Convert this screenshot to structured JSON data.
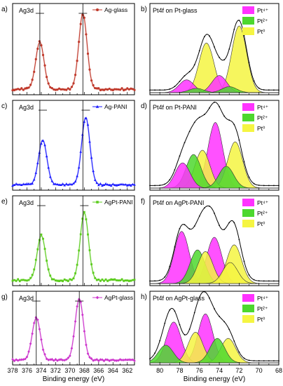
{
  "figure": {
    "left_x_ticks": [
      "378",
      "376",
      "374",
      "372",
      "370",
      "368",
      "366",
      "364",
      "362"
    ],
    "right_x_ticks": [
      "80",
      "78",
      "76",
      "74",
      "72",
      "70",
      "68"
    ],
    "left_x_label": "Binding energy (eV)",
    "right_x_label": "Binding energy (eV)"
  },
  "chart_data": [
    {
      "id": "a",
      "type": "line",
      "panel_label": "a)",
      "inset": "Ag3d",
      "legend": "Ag-glass",
      "color": "#c0392b",
      "marker": "circle",
      "x_range": [
        378,
        361
      ],
      "peaks": [
        {
          "x": 374.2,
          "height": 0.55
        },
        {
          "x": 368.2,
          "height": 0.88
        }
      ],
      "ref_lines": [
        374.2,
        368.2
      ]
    },
    {
      "id": "b",
      "type": "area",
      "panel_label": "b)",
      "inset": "Pt4f on Pt-glass",
      "legend_entries": [
        "Pt⁴⁺",
        "Pt²⁺",
        "Pt⁰"
      ],
      "legend_colors": [
        "#ff33ff",
        "#4dd82e",
        "#f5f542"
      ],
      "x_range": [
        81,
        68
      ],
      "components": [
        {
          "state": "Pt0",
          "x": 72.0,
          "height": 0.78
        },
        {
          "state": "Pt0",
          "x": 75.3,
          "height": 0.58
        },
        {
          "state": "Pt4+",
          "x": 74.0,
          "height": 0.2
        },
        {
          "state": "Pt4+",
          "x": 77.3,
          "height": 0.15
        },
        {
          "state": "Pt2+",
          "x": 73.0,
          "height": 0.07
        },
        {
          "state": "Pt2+",
          "x": 76.3,
          "height": 0.05
        }
      ]
    },
    {
      "id": "c",
      "type": "line",
      "panel_label": "c)",
      "inset": "Ag3d",
      "legend": "Ag-PANI",
      "color": "#1a1aff",
      "marker": "triangle",
      "x_range": [
        378,
        361
      ],
      "peaks": [
        {
          "x": 373.8,
          "height": 0.53
        },
        {
          "x": 367.8,
          "height": 0.8
        }
      ],
      "ref_lines": [
        374.2,
        368.2
      ]
    },
    {
      "id": "d",
      "type": "area",
      "panel_label": "d)",
      "inset": "Pt4f on Pt-PANI",
      "legend_entries": [
        "Pt⁴⁺",
        "Pt²⁺",
        "Pt⁰"
      ],
      "legend_colors": [
        "#ff33ff",
        "#4dd82e",
        "#f5f542"
      ],
      "x_range": [
        81,
        68
      ],
      "components": [
        {
          "state": "Pt0",
          "x": 72.4,
          "height": 0.55
        },
        {
          "state": "Pt0",
          "x": 75.7,
          "height": 0.45
        },
        {
          "state": "Pt4+",
          "x": 74.4,
          "height": 0.78
        },
        {
          "state": "Pt4+",
          "x": 77.7,
          "height": 0.3
        },
        {
          "state": "Pt2+",
          "x": 73.3,
          "height": 0.26
        },
        {
          "state": "Pt2+",
          "x": 76.6,
          "height": 0.4
        }
      ]
    },
    {
      "id": "e",
      "type": "line",
      "panel_label": "e)",
      "inset": "Ag3d",
      "legend": "AgPt-PANI",
      "color": "#5ccc1e",
      "marker": "square",
      "x_range": [
        378,
        361
      ],
      "peaks": [
        {
          "x": 374.0,
          "height": 0.53
        },
        {
          "x": 368.0,
          "height": 0.8
        }
      ],
      "ref_lines": [
        374.2,
        368.2
      ]
    },
    {
      "id": "f",
      "type": "area",
      "panel_label": "f)",
      "inset": "Pt4f on AgPt-PANI",
      "legend_entries": [
        "Pt⁴⁺",
        "Pt²⁺",
        "Pt⁰"
      ],
      "legend_colors": [
        "#ff33ff",
        "#4dd82e",
        "#f5f542"
      ],
      "x_range": [
        81,
        68
      ],
      "components": [
        {
          "state": "Pt4+",
          "x": 74.5,
          "height": 0.55
        },
        {
          "state": "Pt4+",
          "x": 77.8,
          "height": 0.62
        },
        {
          "state": "Pt0",
          "x": 72.5,
          "height": 0.46
        },
        {
          "state": "Pt0",
          "x": 75.4,
          "height": 0.38
        },
        {
          "state": "Pt0",
          "x": 72.9,
          "height": 0.25
        },
        {
          "state": "Pt2+",
          "x": 76.2,
          "height": 0.4
        }
      ]
    },
    {
      "id": "g",
      "type": "line",
      "panel_label": "g)",
      "inset": "Ag3d",
      "legend": "AgPt-glass",
      "color": "#cc33cc",
      "marker": "diamond",
      "x_range": [
        378,
        361
      ],
      "peaks": [
        {
          "x": 374.7,
          "height": 0.62
        },
        {
          "x": 368.7,
          "height": 0.9
        }
      ],
      "ref_lines": [
        374.7,
        368.7
      ]
    },
    {
      "id": "h",
      "type": "area",
      "panel_label": "h)",
      "inset": "Pt4f on AgPt-glass",
      "legend_entries": [
        "Pt⁴⁺",
        "Pt²⁺",
        "Pt⁰"
      ],
      "legend_colors": [
        "#ff33ff",
        "#4dd82e",
        "#f5f542"
      ],
      "x_range": [
        81,
        68
      ],
      "components": [
        {
          "state": "Pt4+",
          "x": 75.4,
          "height": 0.72
        },
        {
          "state": "Pt4+",
          "x": 78.6,
          "height": 0.6
        },
        {
          "state": "Pt0",
          "x": 73.1,
          "height": 0.36
        },
        {
          "state": "Pt0",
          "x": 76.4,
          "height": 0.45
        },
        {
          "state": "Pt2+",
          "x": 74.2,
          "height": 0.36
        },
        {
          "state": "Pt2+",
          "x": 79.4,
          "height": 0.26
        }
      ]
    }
  ]
}
